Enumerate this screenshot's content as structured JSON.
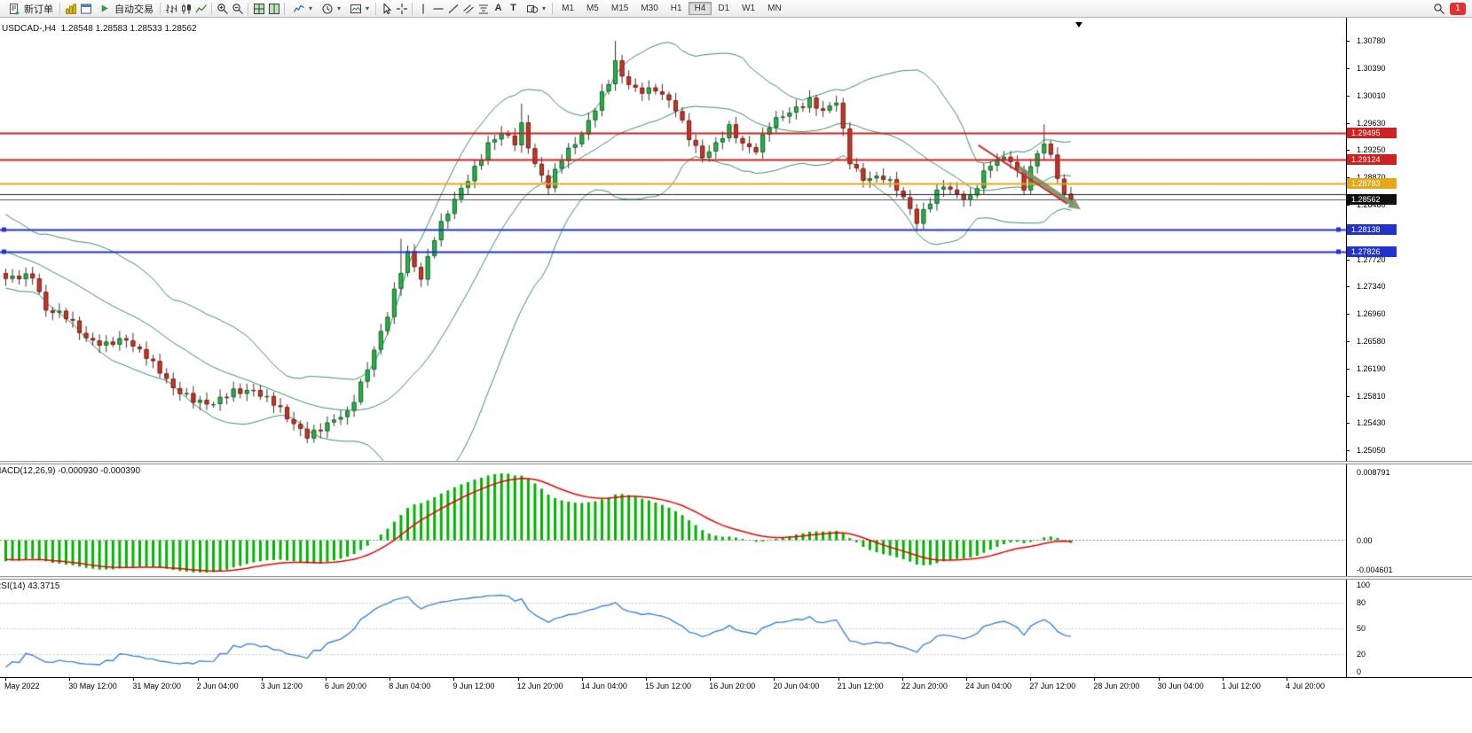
{
  "toolbar": {
    "new_order_label": "新订单",
    "autotrading_label": "自动交易",
    "text_tool_glyph": "A",
    "label_tool_glyph": "T",
    "notification_badge": "1",
    "timeframes": [
      "M1",
      "M5",
      "M15",
      "M30",
      "H1",
      "H4",
      "D1",
      "W1",
      "MN"
    ],
    "active_timeframe": "H4"
  },
  "chart": {
    "title": "USDCAD-,H4  1.28548 1.28583 1.28533 1.28562"
  },
  "price_axis": {
    "labels": [
      "1.30780",
      "1.30390",
      "1.30010",
      "1.29630",
      "1.29250",
      "1.28870",
      "1.28480",
      "1.28100",
      "1.27720",
      "1.27340",
      "1.26960",
      "1.26580",
      "1.26190",
      "1.25810",
      "1.25430",
      "1.25050"
    ]
  },
  "time_axis": {
    "labels": [
      "May 2022",
      "30 May 12:00",
      "31 May 20:00",
      "2 Jun 04:00",
      "3 Jun 12:00",
      "6 Jun 20:00",
      "8 Jun 04:00",
      "9 Jun 12:00",
      "12 Jun 20:00",
      "14 Jun 04:00",
      "15 Jun 12:00",
      "16 Jun 20:00",
      "20 Jun 04:00",
      "21 Jun 12:00",
      "22 Jun 20:00",
      "24 Jun 04:00",
      "27 Jun 12:00",
      "28 Jun 20:00",
      "30 Jun 04:00",
      "1 Jul 12:00",
      "4 Jul 20:00"
    ]
  },
  "macd_panel": {
    "label": "MACD(12,26,9) -0.000930 -0.000390",
    "scale_max": "0.008791",
    "scale_zero": "0.00",
    "scale_min": "-0.004601"
  },
  "rsi_panel": {
    "label": "RSI(14) 43.3715",
    "scale": [
      "100",
      "80",
      "50",
      "20",
      "0"
    ],
    "levels": [
      80,
      50,
      20
    ]
  },
  "chart_data": {
    "type": "candlestick",
    "symbol": "USDCAD-",
    "timeframe": "H4",
    "ohlc_current": {
      "open": 1.28548,
      "high": 1.28583,
      "low": 1.28533,
      "close": 1.28562
    },
    "price_range": {
      "axis_top": 1.3078,
      "axis_bottom": 1.2505
    },
    "candle_count": 160,
    "close_waypoints": [
      [
        0,
        1.2742
      ],
      [
        4,
        1.2752
      ],
      [
        6,
        1.2702
      ],
      [
        9,
        1.269
      ],
      [
        12,
        1.2664
      ],
      [
        15,
        1.2652
      ],
      [
        18,
        1.2658
      ],
      [
        21,
        1.264
      ],
      [
        23,
        1.2615
      ],
      [
        25,
        1.2588
      ],
      [
        28,
        1.2578
      ],
      [
        31,
        1.257
      ],
      [
        34,
        1.2585
      ],
      [
        37,
        1.2592
      ],
      [
        40,
        1.257
      ],
      [
        42,
        1.2548
      ],
      [
        45,
        1.2528
      ],
      [
        48,
        1.254
      ],
      [
        51,
        1.2556
      ],
      [
        53,
        1.26
      ],
      [
        55,
        1.2646
      ],
      [
        57,
        1.2692
      ],
      [
        59,
        1.2756
      ],
      [
        60,
        1.2782
      ],
      [
        62,
        1.2748
      ],
      [
        64,
        1.2802
      ],
      [
        66,
        1.2836
      ],
      [
        68,
        1.2872
      ],
      [
        70,
        1.2902
      ],
      [
        72,
        1.2932
      ],
      [
        74,
        1.2946
      ],
      [
        76,
        1.2936
      ],
      [
        77,
        1.2962
      ],
      [
        79,
        1.2906
      ],
      [
        81,
        1.2872
      ],
      [
        83,
        1.2912
      ],
      [
        86,
        1.295
      ],
      [
        88,
        1.2984
      ],
      [
        90,
        1.3018
      ],
      [
        91,
        1.3046
      ],
      [
        92,
        1.3028
      ],
      [
        94,
        1.3012
      ],
      [
        97,
        1.3008
      ],
      [
        100,
        1.2982
      ],
      [
        102,
        1.2946
      ],
      [
        104,
        1.2916
      ],
      [
        106,
        1.293
      ],
      [
        108,
        1.2956
      ],
      [
        110,
        1.2936
      ],
      [
        112,
        1.2926
      ],
      [
        114,
        1.2958
      ],
      [
        116,
        1.2972
      ],
      [
        118,
        1.2986
      ],
      [
        120,
        1.2996
      ],
      [
        122,
        1.2976
      ],
      [
        124,
        1.2992
      ],
      [
        126,
        1.2912
      ],
      [
        128,
        1.2886
      ],
      [
        131,
        1.2884
      ],
      [
        133,
        1.2872
      ],
      [
        135,
        1.2846
      ],
      [
        136,
        1.2826
      ],
      [
        138,
        1.2852
      ],
      [
        140,
        1.2874
      ],
      [
        142,
        1.2864
      ],
      [
        144,
        1.286
      ],
      [
        146,
        1.2892
      ],
      [
        148,
        1.291
      ],
      [
        150,
        1.2914
      ],
      [
        151,
        1.2896
      ],
      [
        152,
        1.2874
      ],
      [
        153,
        1.2902
      ],
      [
        155,
        1.2934
      ],
      [
        156,
        1.2912
      ],
      [
        157,
        1.2888
      ],
      [
        158,
        1.2862
      ],
      [
        159,
        1.28562
      ]
    ],
    "wick_overrides": [
      [
        45,
        "low",
        1.2517
      ],
      [
        59,
        "high",
        1.2801
      ],
      [
        77,
        "high",
        1.299
      ],
      [
        91,
        "high",
        1.3078
      ],
      [
        125,
        "high",
        1.2998
      ],
      [
        136,
        "low",
        1.2813
      ],
      [
        155,
        "high",
        1.2961
      ]
    ],
    "price_lines": [
      {
        "label": "1.29495",
        "price": 1.29495,
        "color": "#cc2222",
        "width": 2,
        "tag": true
      },
      {
        "label": "1.29124",
        "price": 1.29124,
        "color": "#cc2222",
        "width": 2,
        "tag": true
      },
      {
        "label": "1.28783",
        "price": 1.28783,
        "color": "#e6a817",
        "width": 2,
        "tag": true
      },
      {
        "price": 1.2864,
        "color": "#222222",
        "width": 1,
        "tag": false
      },
      {
        "label": "1.28562",
        "price": 1.28562,
        "color": "#555555",
        "width": 1,
        "tag": true,
        "tag_bg": "#111111"
      },
      {
        "label": "1.28138",
        "price": 1.28138,
        "color": "#2233cc",
        "width": 2,
        "tag": true,
        "handles": true
      },
      {
        "label": "1.27826",
        "price": 1.27826,
        "color": "#2233cc",
        "width": 2,
        "tag": true,
        "handles": true
      }
    ],
    "objects": {
      "trendline": {
        "i1": 145.5,
        "p1": 1.2932,
        "i2": 158.8,
        "p2": 1.285,
        "color": "#cc2222",
        "width": 2
      },
      "arrow": {
        "i1": 151.5,
        "p1": 1.2901,
        "i2": 160.8,
        "p2": 1.2842,
        "color": "#7a8f63",
        "width": 5
      }
    },
    "indicators": {
      "bollinger": {
        "period": 20,
        "deviation": 2,
        "color": "#3e8e63"
      },
      "macd": {
        "fast": 12,
        "slow": 26,
        "signal": 9,
        "histogram_color": "#00b300",
        "signal_color": "#e60000",
        "current": [
          -0.00093,
          -0.00039
        ]
      },
      "rsi": {
        "period": 14,
        "current": 43.3715,
        "color": "#3d85d8"
      }
    },
    "candle_colors": {
      "bull_fill": "#2fae4b",
      "bull_stroke": "#156b2d",
      "bear_fill": "#c0392b",
      "bear_stroke": "#7c1f14",
      "wick": "#333333"
    }
  }
}
